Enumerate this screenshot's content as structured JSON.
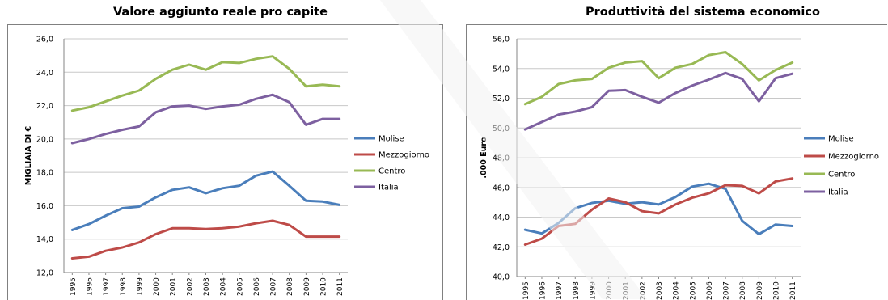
{
  "chart_data": [
    {
      "type": "line",
      "title": "Valore aggiunto reale pro capite",
      "xlabel": "",
      "ylabel": "MIGLIAIA DI €",
      "ylim": [
        12,
        26
      ],
      "yticks": [
        "26,0",
        "24,0",
        "22,0",
        "20,0",
        "18,0",
        "16,0",
        "14,0",
        "12,0"
      ],
      "ytick_values": [
        26,
        24,
        22,
        20,
        18,
        16,
        14,
        12
      ],
      "categories": [
        "1995",
        "1996",
        "1997",
        "1998",
        "1999",
        "2000",
        "2001",
        "2002",
        "2003",
        "2004",
        "2005",
        "2006",
        "2007",
        "2008",
        "2009",
        "2010",
        "2011"
      ],
      "grid": true,
      "legend_position": "right",
      "series": [
        {
          "name": "Molise",
          "color": "#4a7ebb",
          "values": [
            14.55,
            14.9,
            15.4,
            15.85,
            15.95,
            16.5,
            16.95,
            17.1,
            16.75,
            17.05,
            17.2,
            17.8,
            18.05,
            17.2,
            16.3,
            16.25,
            16.05
          ]
        },
        {
          "name": "Mezzogiorno",
          "color": "#be4b48",
          "values": [
            12.85,
            12.95,
            13.3,
            13.5,
            13.8,
            14.3,
            14.65,
            14.65,
            14.6,
            14.65,
            14.75,
            14.95,
            15.1,
            14.85,
            14.15,
            14.15,
            14.15
          ]
        },
        {
          "name": "Centro",
          "color": "#98b954",
          "values": [
            21.7,
            21.9,
            22.25,
            22.6,
            22.9,
            23.6,
            24.15,
            24.45,
            24.15,
            24.6,
            24.55,
            24.8,
            24.95,
            24.2,
            23.15,
            23.25,
            23.15
          ]
        },
        {
          "name": "Italia",
          "color": "#7d60a0",
          "values": [
            19.75,
            20.0,
            20.3,
            20.55,
            20.75,
            21.6,
            21.95,
            22.0,
            21.8,
            21.95,
            22.05,
            22.4,
            22.65,
            22.2,
            20.85,
            21.2,
            21.2
          ]
        }
      ]
    },
    {
      "type": "line",
      "title": "Produttività del sistema economico",
      "xlabel": "",
      "ylabel": ".000 Euro",
      "ylim": [
        40,
        56
      ],
      "yticks": [
        "56,0",
        "54,0",
        "52,0",
        "50,0",
        "48,0",
        "46,0",
        "44,0",
        "42,0",
        "40,0"
      ],
      "ytick_values": [
        56,
        54,
        52,
        50,
        48,
        46,
        44,
        42,
        40
      ],
      "categories": [
        "1995",
        "1996",
        "1997",
        "1998",
        "1999",
        "2000",
        "2001",
        "2002",
        "2003",
        "2004",
        "2005",
        "2006",
        "2007",
        "2008",
        "2009",
        "2010",
        "2011"
      ],
      "grid": true,
      "legend_position": "right",
      "series": [
        {
          "name": "Molise",
          "color": "#4a7ebb",
          "values": [
            43.15,
            42.9,
            43.6,
            44.6,
            44.95,
            45.1,
            44.9,
            45.0,
            44.85,
            45.35,
            46.05,
            46.25,
            45.9,
            43.75,
            42.85,
            43.5,
            43.4
          ]
        },
        {
          "name": "Mezzogiorno",
          "color": "#be4b48",
          "values": [
            42.15,
            42.55,
            43.4,
            43.55,
            44.5,
            45.25,
            45.0,
            44.4,
            44.25,
            44.85,
            45.3,
            45.6,
            46.15,
            46.1,
            45.6,
            46.4,
            46.6
          ]
        },
        {
          "name": "Centro",
          "color": "#98b954",
          "values": [
            51.6,
            52.1,
            52.95,
            53.2,
            53.3,
            54.05,
            54.4,
            54.5,
            53.35,
            54.05,
            54.3,
            54.9,
            55.1,
            54.3,
            53.2,
            53.9,
            54.4
          ]
        },
        {
          "name": "Italia",
          "color": "#7d60a0",
          "values": [
            49.9,
            50.4,
            50.9,
            51.1,
            51.4,
            52.5,
            52.55,
            52.1,
            51.7,
            52.35,
            52.85,
            53.25,
            53.7,
            53.3,
            51.8,
            53.35,
            53.65
          ]
        }
      ]
    }
  ]
}
